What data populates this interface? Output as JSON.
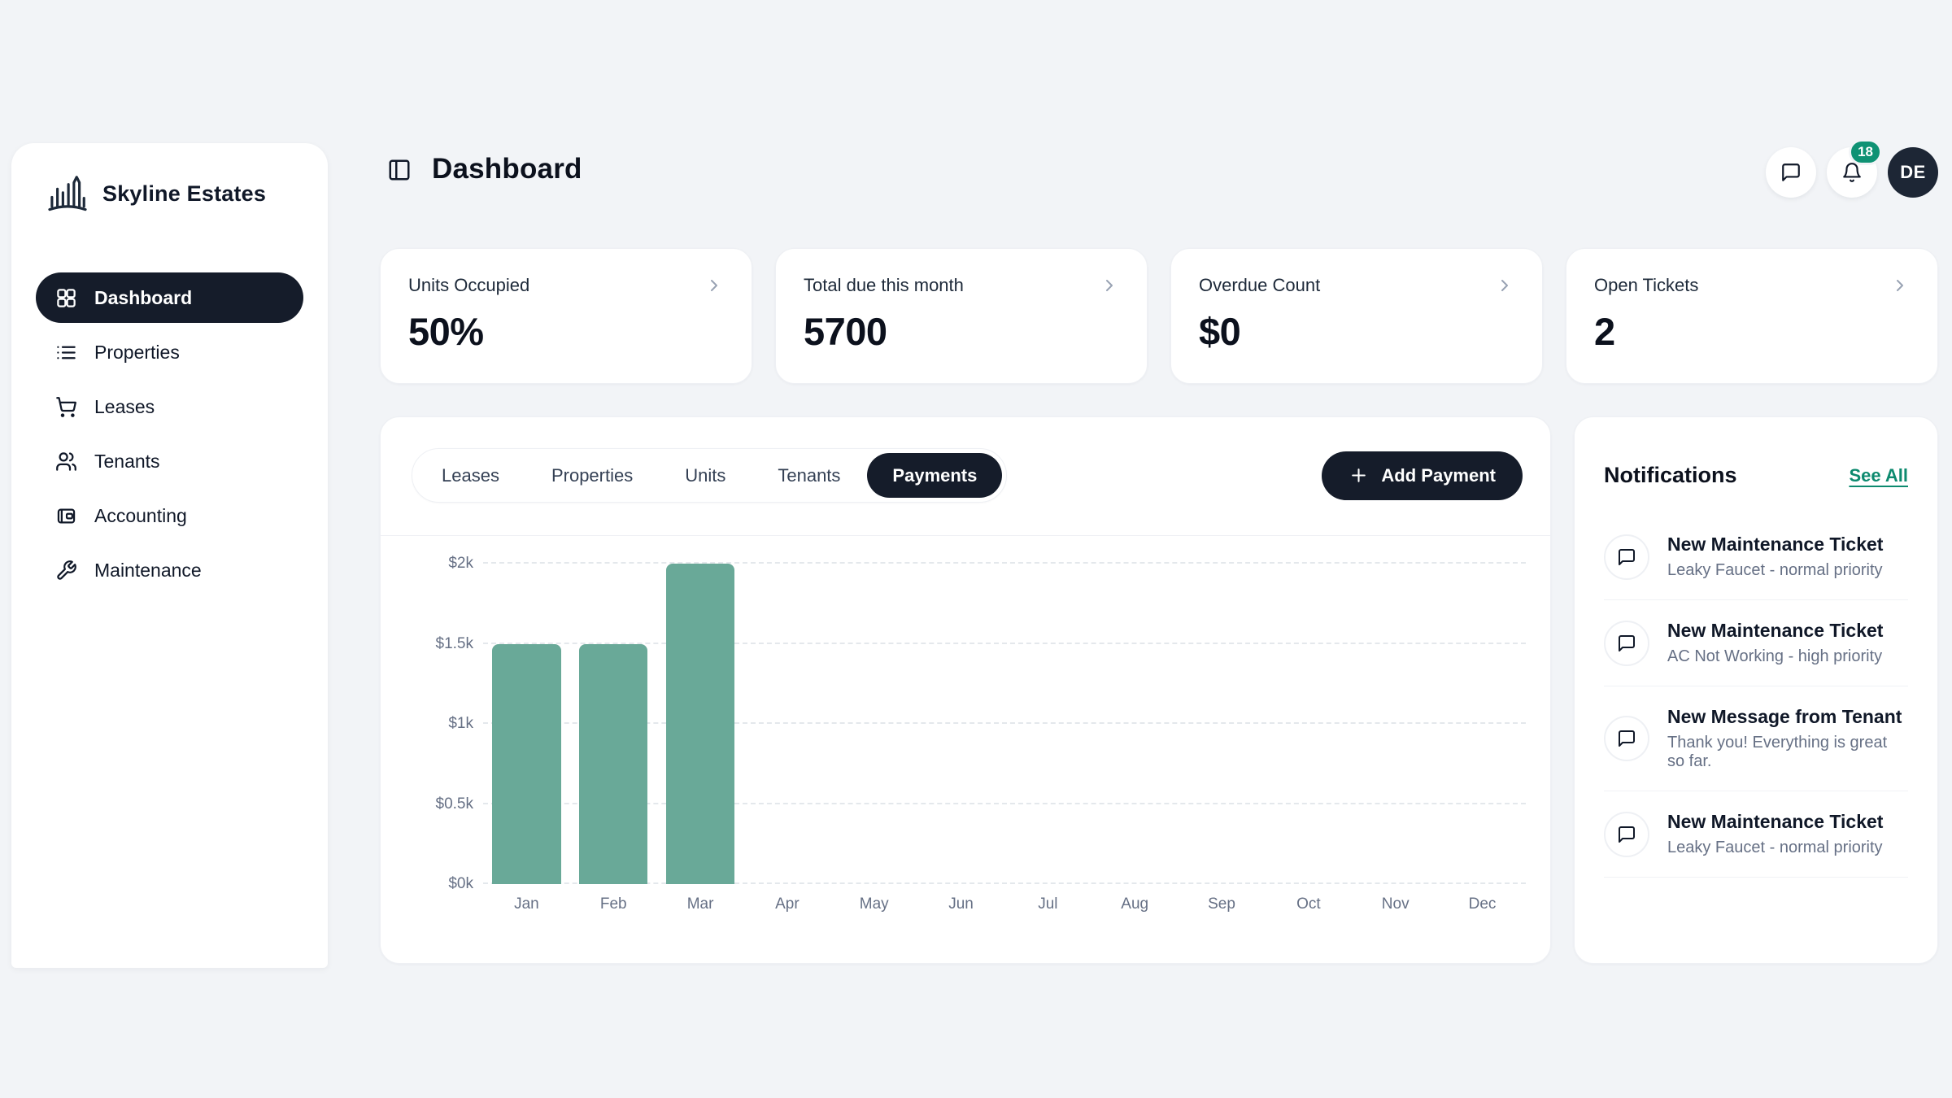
{
  "app": {
    "brand": "Skyline Estates"
  },
  "colors": {
    "background": "#f2f4f7",
    "dark_accent": "#151c2a",
    "bar_teal": "#69a998",
    "badge_green": "#0f9274",
    "link_green": "#0d8a6f",
    "text_secondary": "#667085"
  },
  "sidebar": {
    "items": [
      {
        "label": "Dashboard",
        "icon": "dashboard-grid-icon",
        "active": true
      },
      {
        "label": "Properties",
        "icon": "list-icon",
        "active": false
      },
      {
        "label": "Leases",
        "icon": "cart-icon",
        "active": false
      },
      {
        "label": "Tenants",
        "icon": "users-icon",
        "active": false
      },
      {
        "label": "Accounting",
        "icon": "wallet-icon",
        "active": false
      },
      {
        "label": "Maintenance",
        "icon": "wrench-icon",
        "active": false
      }
    ]
  },
  "header": {
    "title": "Dashboard",
    "notification_badge": "18",
    "avatar_initials": "DE"
  },
  "stats": [
    {
      "label": "Units Occupied",
      "value": "50%"
    },
    {
      "label": "Total due this month",
      "value": "5700"
    },
    {
      "label": "Overdue Count",
      "value": "$0"
    },
    {
      "label": "Open Tickets",
      "value": "2"
    }
  ],
  "tabs": [
    {
      "label": "Leases",
      "active": false
    },
    {
      "label": "Properties",
      "active": false
    },
    {
      "label": "Units",
      "active": false
    },
    {
      "label": "Tenants",
      "active": false
    },
    {
      "label": "Payments",
      "active": true
    }
  ],
  "actions": {
    "add_payment": "Add Payment"
  },
  "chart_data": {
    "type": "bar",
    "categories": [
      "Jan",
      "Feb",
      "Mar",
      "Apr",
      "May",
      "Jun",
      "Jul",
      "Aug",
      "Sep",
      "Oct",
      "Nov",
      "Dec"
    ],
    "values": [
      1500,
      1500,
      2000,
      0,
      0,
      0,
      0,
      0,
      0,
      0,
      0,
      0
    ],
    "yticks": [
      "$0k",
      "$0.5k",
      "$1k",
      "$1.5k",
      "$2k"
    ],
    "ytick_values": [
      0,
      500,
      1000,
      1500,
      2000
    ],
    "ylim": [
      0,
      2000
    ],
    "xlabel": "",
    "ylabel": "",
    "bar_color": "#69a998",
    "grid": "horizontal-dashed",
    "legend": "none"
  },
  "notifications": {
    "title": "Notifications",
    "see_all": "See All",
    "items": [
      {
        "title": "New Maintenance Ticket",
        "subtitle": "Leaky Faucet - normal priority"
      },
      {
        "title": "New Maintenance Ticket",
        "subtitle": "AC Not Working - high priority"
      },
      {
        "title": "New Message from Tenant",
        "subtitle": "Thank you! Everything is great so far."
      },
      {
        "title": "New Maintenance Ticket",
        "subtitle": "Leaky Faucet - normal priority"
      }
    ],
    "partial_fifth_item_visible": true
  }
}
